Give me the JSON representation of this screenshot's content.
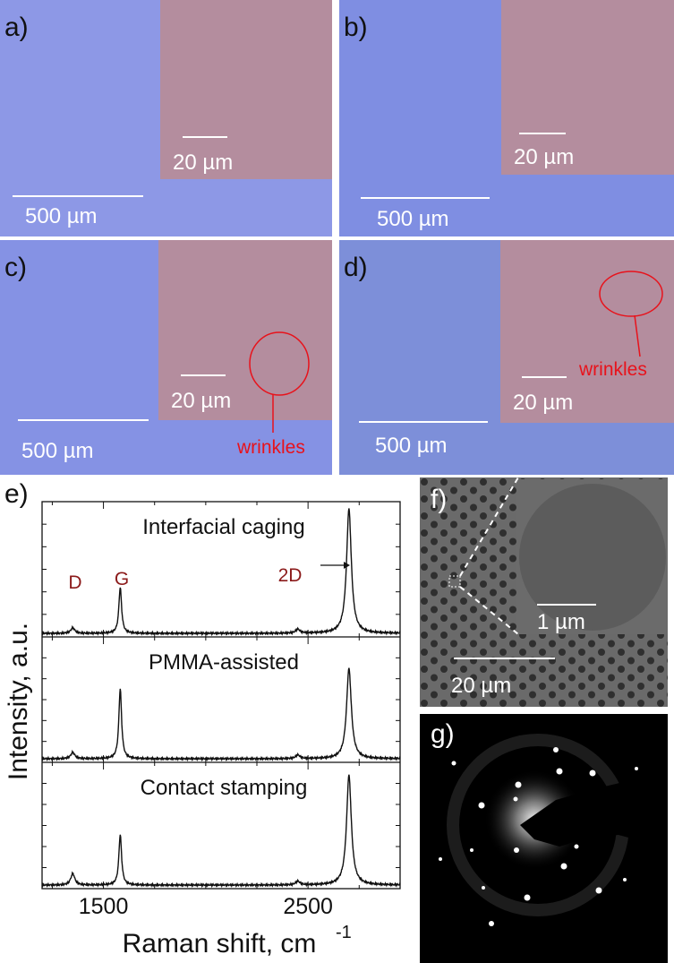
{
  "panels": {
    "a": {
      "label": "a)",
      "scale_main": "500  µm",
      "scale_inset": "20 µm"
    },
    "b": {
      "label": "b)",
      "scale_main": "500  µm",
      "scale_inset": "20 µm"
    },
    "c": {
      "label": "c)",
      "scale_main": "500  µm",
      "scale_inset": "20 µm",
      "annotation": "wrinkles"
    },
    "d": {
      "label": "d)",
      "scale_main": "500  µm",
      "scale_inset": "20 µm",
      "annotation": "wrinkles"
    },
    "e": {
      "label": "e)"
    },
    "f": {
      "label": "f)",
      "scale_main": "20 µm",
      "scale_inset": "1 µm"
    },
    "g": {
      "label": "g)"
    }
  },
  "colors": {
    "optical_bg": "#8d98e6",
    "inset_bg": "#b48d9e",
    "annotation": "#e8121b",
    "peak_label": "#8b1a1a"
  },
  "chart_data": {
    "type": "line",
    "xlabel": "Raman shift, cm",
    "xlabel_superscript": "-1",
    "ylabel": "Intensity, a.u.",
    "xlim": [
      1200,
      2950
    ],
    "xticks": [
      1500,
      2500
    ],
    "tick_labels": [
      "1500",
      "2500"
    ],
    "peak_labels": [
      "D",
      "G",
      "2D"
    ],
    "series": [
      {
        "name": "Interfacial caging",
        "peaks": [
          {
            "x": 1350,
            "h": 0.04
          },
          {
            "x": 1582,
            "h": 0.34
          },
          {
            "x": 2450,
            "h": 0.03
          },
          {
            "x": 2700,
            "h": 0.92
          }
        ]
      },
      {
        "name": "PMMA-assisted",
        "peaks": [
          {
            "x": 1350,
            "h": 0.05
          },
          {
            "x": 1582,
            "h": 0.56
          },
          {
            "x": 2450,
            "h": 0.03
          },
          {
            "x": 2700,
            "h": 0.72
          }
        ]
      },
      {
        "name": "Contact stamping",
        "peaks": [
          {
            "x": 1350,
            "h": 0.09
          },
          {
            "x": 1582,
            "h": 0.4
          },
          {
            "x": 2450,
            "h": 0.03
          },
          {
            "x": 2700,
            "h": 0.87
          }
        ]
      }
    ]
  }
}
